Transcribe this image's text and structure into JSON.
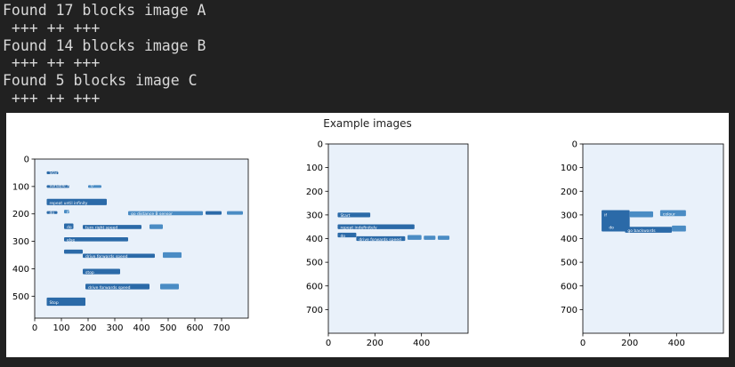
{
  "console": {
    "lines": [
      "Found 17 blocks image A",
      " +++ ++ +++",
      "Found 14 blocks image B",
      " +++ ++ +++",
      "Found 5 blocks image C",
      " +++ ++ +++"
    ]
  },
  "figure": {
    "title": "Example images",
    "colors": {
      "block_dark": "#2b6aa8",
      "block_mid": "#4a8cc4",
      "block_light": "#6fa6d4",
      "canvas_bg": "#e9f1fa"
    }
  },
  "chart_data": [
    {
      "type": "heatmap",
      "title": "",
      "xlim": [
        0,
        800
      ],
      "ylim": [
        580,
        0
      ],
      "xticks": [
        0,
        100,
        200,
        300,
        400,
        500,
        600,
        700
      ],
      "yticks": [
        0,
        100,
        200,
        300,
        400,
        500
      ],
      "block_labels": [
        "Start",
        "variable X",
        "0",
        "repeat until infinity",
        "do",
        "if",
        "go distance B sensor",
        "do",
        "turn right speed",
        "else",
        "drive forwards speed",
        "stop",
        "drive forwards speed",
        "Stop"
      ]
    },
    {
      "type": "heatmap",
      "title": "",
      "xlim": [
        0,
        600
      ],
      "ylim": [
        800,
        0
      ],
      "xticks": [
        0,
        200,
        400
      ],
      "yticks": [
        0,
        100,
        200,
        300,
        400,
        500,
        600,
        700
      ],
      "block_labels": [
        "Start",
        "repeat indefinitely",
        "do",
        "drive forwards speed"
      ]
    },
    {
      "type": "heatmap",
      "title": "",
      "xlim": [
        0,
        600
      ],
      "ylim": [
        800,
        0
      ],
      "xticks": [
        0,
        200,
        400
      ],
      "yticks": [
        0,
        100,
        200,
        300,
        400,
        500,
        600,
        700
      ],
      "block_labels": [
        "if",
        "colour",
        "do",
        "go backwards"
      ]
    }
  ]
}
